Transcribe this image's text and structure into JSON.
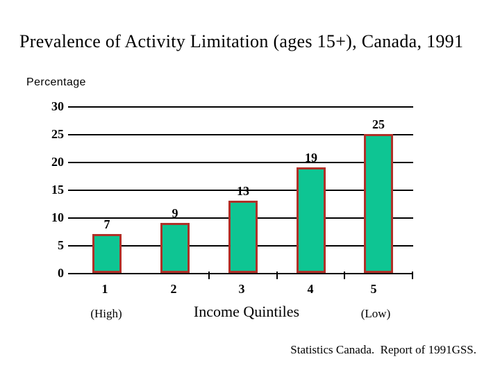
{
  "slide": {
    "title": "Prevalence of Activity Limitation (ages 15+), Canada, 1991",
    "source_note": "Statistics Canada.  Report of 1991GSS."
  },
  "chart_data": {
    "type": "bar",
    "title": "Prevalence of Activity Limitation (ages 15+), Canada, 1991",
    "ylabel": "Percentage",
    "xlabel": "Income Quintiles",
    "x_axis_annotations": {
      "left": "(High)",
      "right": "(Low)"
    },
    "categories": [
      "1",
      "2",
      "3",
      "4",
      "5"
    ],
    "values": [
      7,
      9,
      13,
      19,
      25
    ],
    "data_labels": [
      "7",
      "9",
      "13",
      "19",
      "25"
    ],
    "ylim": [
      0,
      30
    ],
    "yticks": [
      0,
      5,
      10,
      15,
      20,
      25,
      30
    ],
    "grid": true,
    "legend": "none",
    "colors": {
      "bar_fill": "#0EC593",
      "bar_border": "#B03028",
      "axis": "#000000",
      "text": "#000000",
      "background": "#FFFFFF"
    }
  }
}
